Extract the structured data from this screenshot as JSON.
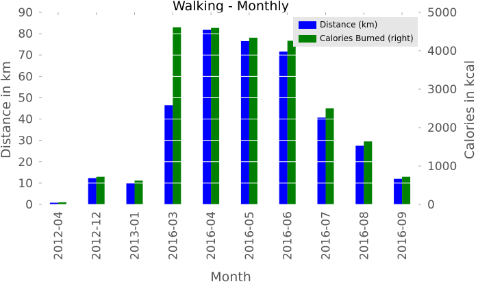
{
  "chart_data": {
    "type": "bar",
    "title": "Walking - Monthly",
    "xlabel": "Month",
    "ylabel": "Distance in km",
    "y2label": "Calories in kcal",
    "categories": [
      "2012-04",
      "2012-12",
      "2013-01",
      "2016-03",
      "2016-04",
      "2016-05",
      "2016-06",
      "2016-07",
      "2016-08",
      "2016-09"
    ],
    "ylim": [
      0,
      90
    ],
    "y2lim": [
      0,
      5000
    ],
    "yticks": [
      0,
      10,
      20,
      30,
      40,
      50,
      60,
      70,
      80,
      90
    ],
    "y2ticks": [
      0,
      1000,
      2000,
      3000,
      4000,
      5000
    ],
    "series": [
      {
        "name": "Distance (km)",
        "axis": "left",
        "color": "#0000ff",
        "values": [
          0.8,
          12.3,
          10.0,
          46.5,
          81.8,
          76.5,
          71.6,
          40.7,
          27.5,
          12.0
        ]
      },
      {
        "name": "Calories Burned (right)",
        "axis": "right",
        "color": "#008000",
        "values": [
          55,
          720,
          620,
          4610,
          4595,
          4340,
          4260,
          2500,
          1640,
          720
        ]
      }
    ],
    "legend_position": "top-right",
    "grid": true,
    "grid_color": "#ffffff"
  }
}
